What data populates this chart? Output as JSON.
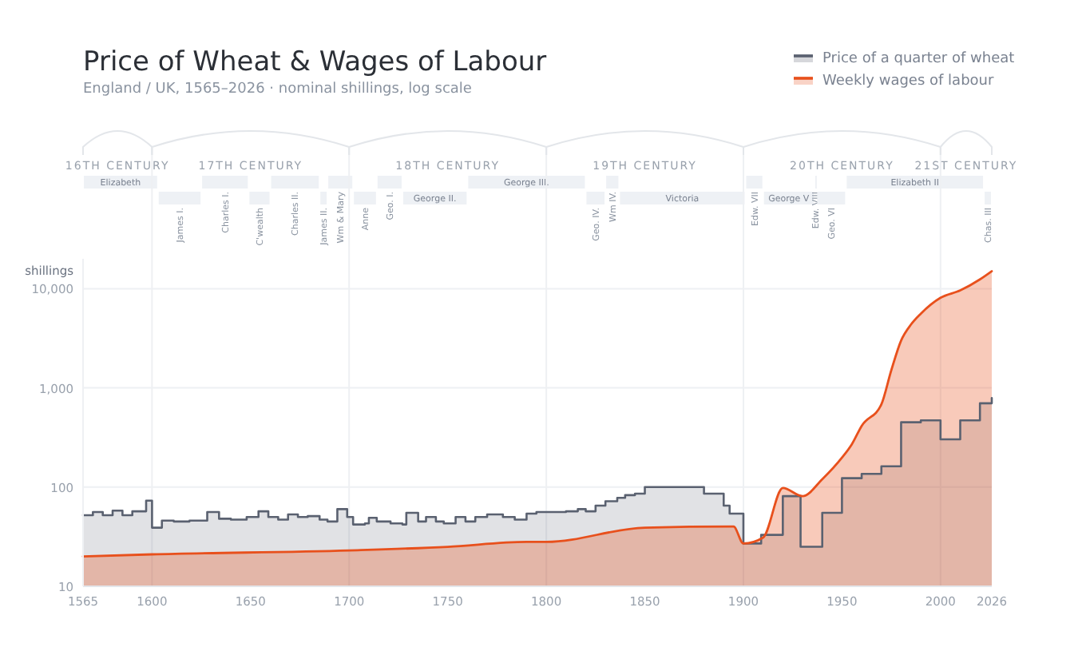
{
  "chart_data": {
    "type": "area",
    "title": "Price of Wheat & Wages of Labour",
    "subtitle": "England / UK, 1565–2026 · nominal shillings, log scale",
    "ylabel": "shillings",
    "log": "y",
    "grid": true,
    "legend": "top right",
    "marker": "none",
    "line_style": "solid",
    "xlim": [
      1565,
      2026
    ],
    "xticks": [
      1565,
      1600,
      1650,
      1700,
      1750,
      1800,
      1850,
      1900,
      1950,
      2000,
      2026
    ],
    "ylim": [
      10,
      20000
    ],
    "yticks": [
      10,
      100,
      {
        "value": 1000,
        "label": "1,000"
      },
      {
        "value": 10000,
        "label": "10,000"
      }
    ],
    "series": [
      {
        "name": "Price of a quarter of wheat",
        "type": "area",
        "color": "#5a6170",
        "x": [
          1565,
          1570,
          1570,
          1575,
          1575,
          1580,
          1580,
          1585,
          1585,
          1590,
          1590,
          1597,
          1597,
          1600,
          1600,
          1605,
          1605,
          1611,
          1611,
          1619,
          1619,
          1628,
          1628,
          1634,
          1634,
          1640,
          1640,
          1648,
          1648,
          1654,
          1654,
          1659,
          1659,
          1664,
          1664,
          1669,
          1669,
          1674,
          1674,
          1679,
          1679,
          1685,
          1685,
          1689,
          1689,
          1694,
          1694,
          1699,
          1699,
          1702,
          1702,
          1708,
          1708,
          1710,
          1710,
          1714,
          1714,
          1721,
          1721,
          1727,
          1727,
          1729,
          1729,
          1735,
          1735,
          1739,
          1739,
          1744,
          1744,
          1748,
          1748,
          1754,
          1754,
          1759,
          1759,
          1764,
          1764,
          1770,
          1770,
          1778,
          1778,
          1784,
          1784,
          1790,
          1790,
          1795,
          1795,
          1805,
          1805,
          1810,
          1810,
          1816,
          1816,
          1820,
          1820,
          1825,
          1825,
          1830,
          1830,
          1836,
          1836,
          1840,
          1840,
          1845,
          1845,
          1850,
          1850,
          1880,
          1880,
          1890,
          1890,
          1893,
          1893,
          1900,
          1900,
          1909,
          1909,
          1920,
          1920,
          1929,
          1929,
          1940,
          1940,
          1950,
          1950,
          1960,
          1960,
          1970,
          1970,
          1980,
          1980,
          1990,
          1990,
          2000,
          2000,
          2010,
          2010,
          2020,
          2020,
          2026,
          2026
        ],
        "values": [
          52,
          52,
          56,
          56,
          52,
          52,
          58,
          58,
          52,
          52,
          57,
          57,
          73,
          73,
          39,
          39,
          46,
          46,
          45,
          45,
          46,
          46,
          56,
          56,
          48,
          48,
          47,
          47,
          50,
          50,
          57,
          57,
          50,
          50,
          47,
          47,
          53,
          53,
          50,
          50,
          51,
          51,
          47,
          47,
          45,
          45,
          60,
          60,
          50,
          50,
          42,
          42,
          43,
          43,
          49,
          49,
          45,
          45,
          43,
          43,
          42,
          42,
          55,
          55,
          45,
          45,
          50,
          50,
          45,
          45,
          43,
          43,
          50,
          50,
          45,
          45,
          50,
          50,
          53,
          53,
          50,
          50,
          47,
          47,
          54,
          54,
          56,
          56,
          56,
          56,
          57,
          57,
          60,
          60,
          57,
          57,
          65,
          65,
          72,
          72,
          78,
          78,
          83,
          83,
          86,
          86,
          100,
          100,
          86,
          86,
          65,
          65,
          54,
          54,
          27,
          27,
          33,
          33,
          81,
          81,
          25,
          25,
          55,
          55,
          123,
          123,
          136,
          136,
          162,
          162,
          450,
          450,
          470,
          470,
          303,
          303,
          470,
          470,
          700,
          700,
          790
        ]
      },
      {
        "name": "Weekly wages of labour",
        "type": "area",
        "color": "#e8501c",
        "x": [
          1565,
          1600,
          1700,
          1750,
          1790,
          1800,
          1850,
          1895,
          1900,
          1910,
          1920,
          1930,
          1940,
          1950,
          1955,
          1960,
          1970,
          1975,
          1980,
          1985,
          1990,
          2000,
          2010,
          2020,
          2026
        ],
        "values": [
          20,
          21,
          23,
          25,
          28,
          28,
          39,
          40,
          27,
          31,
          98,
          81,
          120,
          198,
          270,
          414,
          683,
          1500,
          3000,
          4350,
          5600,
          8100,
          9600,
          12400,
          15000
        ]
      }
    ],
    "annotations": [
      "16TH CENTURY",
      "17TH CENTURY",
      "18TH CENTURY",
      "19TH CENTURY",
      "20TH CENTURY",
      "21ST CENTURY",
      "Elizabeth",
      "James I.",
      "Charles I.",
      "C'wealth",
      "Charles II.",
      "James II.",
      "Wm & Mary",
      "Anne",
      "Geo. I.",
      "George II.",
      "George III.",
      "Geo. IV.",
      "Wm IV.",
      "Victoria",
      "Edw. VII",
      "George V",
      "Edw. VIII",
      "Geo. VI",
      "Elizabeth II",
      "Chas. III"
    ]
  }
}
